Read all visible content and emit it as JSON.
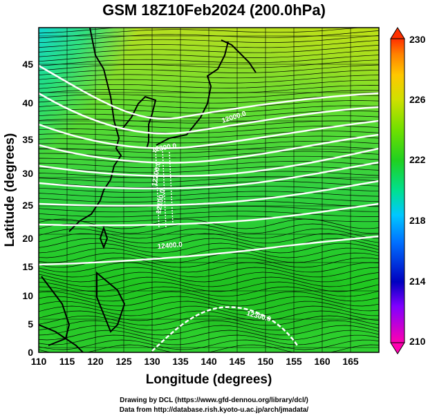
{
  "title": "GSM 18Z10Feb2024 (200.0hPa)",
  "x_axis": {
    "label": "Longitude (degrees)",
    "ticks": [
      "110",
      "115",
      "120",
      "125",
      "130",
      "135",
      "140",
      "145",
      "150",
      "155",
      "160",
      "165"
    ]
  },
  "y_axis": {
    "label": "Latitude  (degrees)",
    "ticks": [
      "0",
      "5",
      "10",
      "15",
      "20",
      "25",
      "30",
      "35",
      "40",
      "45"
    ]
  },
  "colorbar": {
    "ticks": [
      "210",
      "214",
      "218",
      "222",
      "226",
      "230"
    ],
    "colors": [
      "#ff00b0",
      "#8000ff",
      "#0000c0",
      "#0070ff",
      "#00c8ff",
      "#00e090",
      "#20d020",
      "#70e000",
      "#d0e000",
      "#ffc800",
      "#ff8000",
      "#ff3000"
    ]
  },
  "contour_labels": [
    "12000.0",
    "12300.0",
    "12200.0",
    "12100.0",
    "12400.0",
    "12300.0"
  ],
  "credits": {
    "drawing": "Drawing by DCL (https://www.gfd-dennou.org/library/dcl/)",
    "data": "Data from http://database.rish.kyoto-u.ac.jp/arch/jmadata/"
  }
}
